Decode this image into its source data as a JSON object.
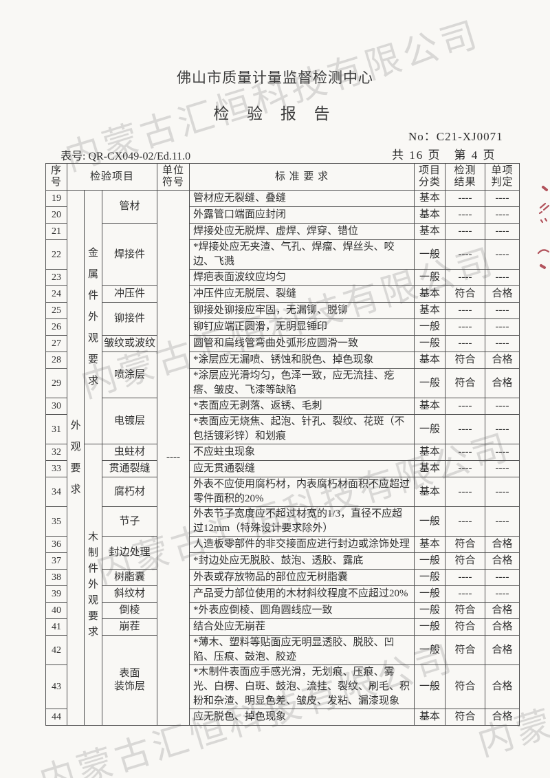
{
  "watermark": {
    "text": "内蒙古汇恒科技有限公司"
  },
  "colors": {
    "ink": "#2f2f2f",
    "stamp_red": "#a63742",
    "watermark_gray": "#969696"
  },
  "header": {
    "org_name": "佛山市质量计量监督检测中心",
    "report_title": "检 验 报 告",
    "report_no": "No：C21-XJ0071",
    "form_no": "表号: QR-CX049-02/Ed.11.0",
    "pagination": "共 16 页　第 4 页"
  },
  "table": {
    "columns": {
      "seq": "序\n号",
      "item": "检验项目",
      "unit": "单位\n符号",
      "requirement": "标 准 要 求",
      "classification": "项目\n分类",
      "result": "检测\n结果",
      "verdict": "单项\n判定"
    },
    "rows": [
      {
        "no": "19",
        "outer": "外观要求",
        "outer_span": 26,
        "group": "金属件外观要求",
        "group_span": 13,
        "item": "管材",
        "item_span": 2,
        "unit": "----",
        "unit_span": 26,
        "req": "管材应无裂缝、叠缝",
        "cls": "基本",
        "result": "----",
        "verdict": "----"
      },
      {
        "no": "20",
        "req": "外露管口端面应封闭",
        "cls": "基本",
        "result": "----",
        "verdict": "----"
      },
      {
        "no": "21",
        "item": "焊接件",
        "item_span": 3,
        "req": "焊接处应无脱焊、虚焊、焊穿、错位",
        "cls": "基本",
        "result": "----",
        "verdict": "----"
      },
      {
        "no": "22",
        "req": "*焊接处应无夹渣、气孔、焊瘤、焊丝头、咬边、飞溅",
        "cls": "一般",
        "result": "----",
        "verdict": "----"
      },
      {
        "no": "23",
        "req": "焊疤表面波纹应均匀",
        "cls": "一般",
        "result": "----",
        "verdict": "----"
      },
      {
        "no": "24",
        "item": "冲压件",
        "item_span": 1,
        "req": "冲压件应无脱层、裂缝",
        "cls": "基本",
        "result": "符合",
        "verdict": "合格"
      },
      {
        "no": "25",
        "item": "铆接件",
        "item_span": 2,
        "req": "铆接处铆接应牢固，无漏铆、脱铆",
        "cls": "基本",
        "result": "----",
        "verdict": "----"
      },
      {
        "no": "26",
        "req": "铆钉应端正圆滑，无明显锤印",
        "cls": "一般",
        "result": "----",
        "verdict": "----"
      },
      {
        "no": "27",
        "item": "皱纹或波纹",
        "item_span": 1,
        "req": "圆管和扁线管弯曲处弧形应圆滑一致",
        "cls": "一般",
        "result": "----",
        "verdict": "----"
      },
      {
        "no": "28",
        "item": "喷涂层",
        "item_span": 2,
        "req": "*涂层应无漏喷、锈蚀和脱色、掉色现象",
        "cls": "基本",
        "result": "符合",
        "verdict": "合格"
      },
      {
        "no": "29",
        "req": "*涂层应光滑均匀，色泽一致，应无流挂、疙瘩、皱皮、飞漆等缺陷",
        "cls": "一般",
        "result": "符合",
        "verdict": "合格"
      },
      {
        "no": "30",
        "item": "电镀层",
        "item_span": 2,
        "req": "*表面应无剥落、返锈、毛刺",
        "cls": "基本",
        "result": "----",
        "verdict": "----"
      },
      {
        "no": "31",
        "req": "*表面应无烧焦、起泡、针孔、裂纹、花斑（不包括镀彩锌）和划痕",
        "cls": "一般",
        "result": "----",
        "verdict": "----"
      },
      {
        "no": "32",
        "group": "木制件外观要求",
        "group_span": 13,
        "item": "虫蛀材",
        "item_span": 1,
        "req": "不应蛀虫现象",
        "cls": "基本",
        "result": "----",
        "verdict": "----"
      },
      {
        "no": "33",
        "item": "贯通裂缝",
        "item_span": 1,
        "req": "应无贯通裂缝",
        "cls": "基本",
        "result": "----",
        "verdict": "----"
      },
      {
        "no": "34",
        "item": "腐朽材",
        "item_span": 1,
        "req": "外表不应使用腐朽材，内表腐朽材面积不应超过零件面积的20%",
        "cls": "基本",
        "result": "----",
        "verdict": "----"
      },
      {
        "no": "35",
        "item": "节子",
        "item_span": 1,
        "req": "外表节子宽度应不超过材宽的1/3，直径不应超过12mm（特殊设计要求除外）",
        "cls": "一般",
        "result": "----",
        "verdict": "----"
      },
      {
        "no": "36",
        "item": "封边处理",
        "item_span": 2,
        "req": "人造板零部件的非交接面应进行封边或涂饰处理",
        "cls": "基本",
        "result": "符合",
        "verdict": "合格"
      },
      {
        "no": "37",
        "req": "*封边处应无脱胶、鼓泡、透胶、露底",
        "cls": "一般",
        "result": "符合",
        "verdict": "合格"
      },
      {
        "no": "38",
        "item": "树脂囊",
        "item_span": 1,
        "req": "外表或存放物品的部位应无树脂囊",
        "cls": "一般",
        "result": "----",
        "verdict": "----"
      },
      {
        "no": "39",
        "item": "斜纹材",
        "item_span": 1,
        "req": "产品受力部位使用的木材斜纹程度不应超过20%",
        "cls": "一般",
        "result": "----",
        "verdict": "----"
      },
      {
        "no": "40",
        "item": "倒棱",
        "item_span": 1,
        "req": "*外表应倒棱、圆角圆线应一致",
        "cls": "一般",
        "result": "符合",
        "verdict": "合格"
      },
      {
        "no": "41",
        "item": "崩茬",
        "item_span": 1,
        "req": "结合处应无崩茬",
        "cls": "一般",
        "result": "符合",
        "verdict": "合格"
      },
      {
        "no": "42",
        "item": "表面\n装饰层",
        "item_span": 3,
        "req": "*薄木、塑料等贴面应无明显透胶、脱胶、凹陷、压痕、鼓泡、胶迹",
        "cls": "一般",
        "result": "符合",
        "verdict": "合格"
      },
      {
        "no": "43",
        "req": "*木制件表面应手感光滑，无划痕、压痕、雾光、白楞、白斑、鼓泡、流挂、裂纹、刷毛、积粉和杂渣、明显色差、皱皮、发粘、漏漆现象",
        "cls": "一般",
        "result": "符合",
        "verdict": "合格"
      },
      {
        "no": "44",
        "req": "应无脱色、掉色现象",
        "cls": "基本",
        "result": "符合",
        "verdict": "合格"
      }
    ]
  }
}
